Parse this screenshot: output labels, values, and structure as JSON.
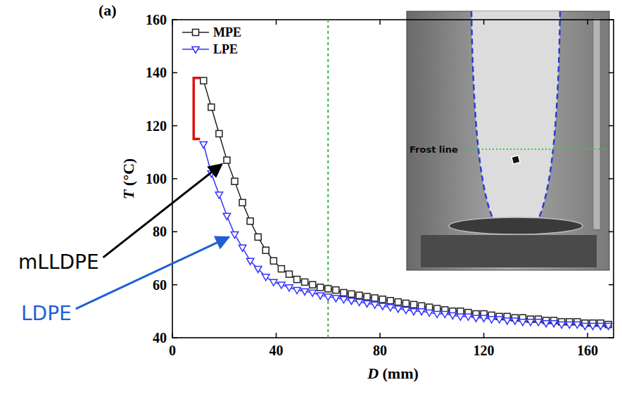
{
  "chart_data": {
    "type": "line",
    "panel_label": "(a)",
    "x_label": "D (mm)",
    "y_label": "T (°C)",
    "xlim": [
      0,
      170
    ],
    "ylim": [
      40,
      160
    ],
    "xticks": [
      0,
      40,
      80,
      120,
      160
    ],
    "yticks": [
      40,
      60,
      80,
      100,
      120,
      140,
      160
    ],
    "grid": false,
    "legend": "upper left",
    "x": [
      12,
      15,
      18,
      21,
      24,
      27,
      30,
      33,
      36,
      39,
      42,
      45,
      48,
      51,
      54,
      57,
      60,
      63,
      66,
      69,
      72,
      75,
      78,
      81,
      84,
      87,
      90,
      93,
      96,
      99,
      102,
      105,
      108,
      111,
      114,
      117,
      120,
      123,
      126,
      129,
      132,
      135,
      138,
      141,
      144,
      147,
      150,
      153,
      156,
      159,
      162,
      165,
      168
    ],
    "series": [
      {
        "name": "MPE",
        "color": "#222222",
        "marker": "square",
        "line_style": "solid",
        "values": [
          137,
          127,
          117,
          107,
          99,
          91,
          84,
          78,
          73,
          69,
          66,
          64,
          62,
          61,
          60,
          59,
          58.5,
          58,
          57,
          56.5,
          56,
          55.5,
          55,
          54.5,
          54,
          53.5,
          53,
          52.5,
          52,
          51.5,
          51,
          50.5,
          50,
          50,
          49.5,
          49,
          49,
          48.5,
          48,
          48,
          47.5,
          47.5,
          47,
          47,
          46.5,
          46.5,
          46,
          46,
          46,
          45.5,
          45.5,
          45.5,
          45
        ]
      },
      {
        "name": "LPE",
        "color": "#3333ff",
        "marker": "triangle-down",
        "line_style": "solid",
        "values": [
          113,
          102,
          94,
          86,
          79,
          74,
          69,
          66,
          63,
          61,
          60,
          59,
          58,
          57.5,
          57,
          56,
          55.5,
          55,
          54.5,
          54,
          53.5,
          53,
          52.5,
          52,
          51.5,
          51,
          50.5,
          50,
          50,
          49.5,
          49,
          49,
          48.5,
          48,
          48,
          47.5,
          47.5,
          47,
          47,
          46.5,
          46.5,
          46,
          46,
          46,
          45.5,
          45.5,
          45,
          45,
          45,
          44.5,
          44.5,
          44.5,
          44.5
        ]
      }
    ],
    "vlines": [
      60
    ],
    "vline_color": "#33bb33",
    "bracket": [
      115,
      138
    ],
    "bracket_color": "#e01010",
    "annotations": [
      {
        "text": "mLLDPE",
        "color": "#000000"
      },
      {
        "text": "LDPE",
        "color": "#1f5fd6"
      }
    ],
    "inset": {
      "label": "Frost line"
    }
  }
}
